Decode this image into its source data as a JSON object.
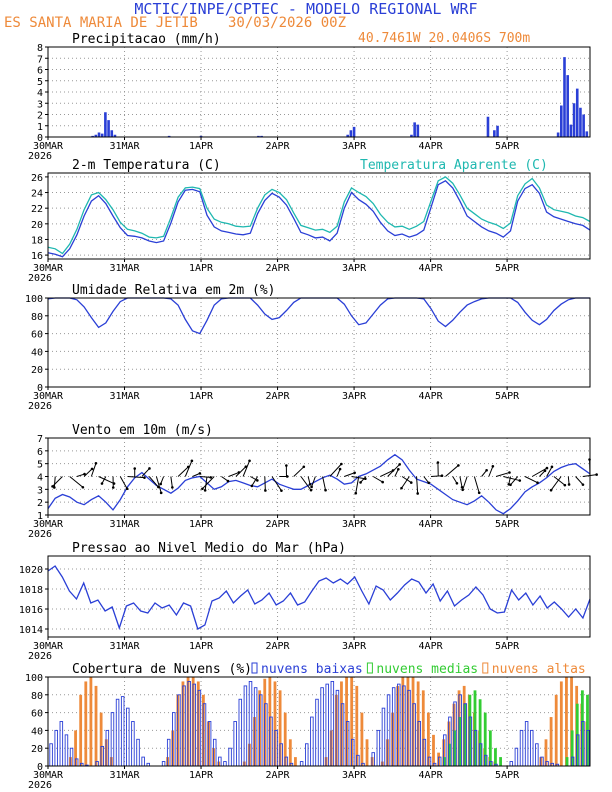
{
  "header": {
    "title": "MCTIC/INPE/CPTEC - MODELO REGIONAL WRF",
    "location": "ES SANTA MARIA DE JETIB",
    "run": "30/03/2026 00Z",
    "coords": "40.7461W 20.0406S 700m"
  },
  "colors": {
    "blue": "#2a3fd6",
    "orange": "#ee8a3a",
    "cyan": "#1fb8b0",
    "green": "#33cc33",
    "black": "#000000"
  },
  "x_axis": {
    "hours": 144,
    "ticks": [
      {
        "h": 0,
        "label": "30MAR",
        "year": "2026"
      },
      {
        "h": 24,
        "label": "31MAR"
      },
      {
        "h": 48,
        "label": "1APR"
      },
      {
        "h": 72,
        "label": "2APR"
      },
      {
        "h": 96,
        "label": "3APR"
      },
      {
        "h": 120,
        "label": "4APR"
      },
      {
        "h": 144,
        "label": "5APR"
      }
    ]
  },
  "chart_data": [
    {
      "type": "bar",
      "title": "Precipitacao (mm/h)",
      "ylim": [
        0,
        8
      ],
      "yticks": [
        0,
        1,
        2,
        3,
        4,
        5,
        6,
        7,
        8
      ],
      "series": [
        {
          "name": "precipitacao",
          "color": "#2a3fd6",
          "points": [
            [
              14,
              0.1
            ],
            [
              15,
              0.2
            ],
            [
              16,
              0.4
            ],
            [
              17,
              0.3
            ],
            [
              18,
              2.2
            ],
            [
              19,
              1.5
            ],
            [
              20,
              0.6
            ],
            [
              21,
              0.2
            ],
            [
              38,
              0.1
            ],
            [
              48,
              0.1
            ],
            [
              66,
              0.1
            ],
            [
              67,
              0.1
            ],
            [
              94,
              0.2
            ],
            [
              95,
              0.6
            ],
            [
              96,
              0.9
            ],
            [
              114,
              0.2
            ],
            [
              115,
              1.3
            ],
            [
              116,
              1.1
            ],
            [
              138,
              1.8
            ],
            [
              140,
              0.6
            ],
            [
              141,
              1.0
            ],
            [
              160,
              0.4
            ],
            [
              161,
              2.8
            ],
            [
              162,
              7.1
            ],
            [
              163,
              5.5
            ],
            [
              164,
              1.1
            ],
            [
              165,
              3.0
            ],
            [
              166,
              4.3
            ],
            [
              167,
              2.6
            ],
            [
              168,
              2.0
            ],
            [
              169,
              0.5
            ]
          ]
        }
      ]
    },
    {
      "type": "line",
      "title": "2-m Temperatura (C)",
      "legend": "Temperatura Aparente (C)",
      "ylim": [
        15.5,
        26.5
      ],
      "yticks": [
        16,
        18,
        20,
        22,
        24,
        26
      ],
      "series": [
        {
          "name": "temperatura",
          "color": "#2a3fd6",
          "values": [
            16.3,
            16.1,
            15.8,
            16.8,
            18.6,
            21.0,
            22.9,
            23.6,
            22.6,
            21.0,
            19.5,
            18.5,
            18.4,
            18.2,
            17.8,
            17.6,
            17.8,
            20.1,
            22.8,
            24.3,
            24.4,
            24.1,
            21.1,
            19.6,
            19.1,
            18.9,
            18.7,
            18.6,
            18.8,
            21.3,
            23.0,
            23.9,
            23.4,
            22.4,
            20.7,
            18.9,
            18.6,
            18.2,
            18.3,
            17.8,
            18.8,
            22.0,
            24.0,
            23.1,
            22.5,
            21.6,
            20.2,
            19.1,
            18.5,
            18.7,
            18.3,
            18.6,
            19.2,
            22.1,
            25.0,
            25.5,
            24.6,
            22.9,
            21.0,
            20.3,
            19.6,
            19.1,
            18.8,
            18.3,
            19.1,
            22.9,
            24.5,
            25.0,
            23.9,
            21.5,
            20.9,
            20.6,
            20.3,
            20.0,
            19.8,
            19.2
          ]
        },
        {
          "name": "temperatura aparente",
          "color": "#1fb8b0",
          "values": [
            17.0,
            16.8,
            16.2,
            17.4,
            19.3,
            21.8,
            23.7,
            24.0,
            23.1,
            21.8,
            20.2,
            19.3,
            19.1,
            18.8,
            18.3,
            18.2,
            18.4,
            20.8,
            23.4,
            24.6,
            24.7,
            24.5,
            22.0,
            20.6,
            20.2,
            20.0,
            19.7,
            19.6,
            19.7,
            22.0,
            23.7,
            24.4,
            24.0,
            23.1,
            21.4,
            19.8,
            19.5,
            19.2,
            19.3,
            18.9,
            19.7,
            22.8,
            24.6,
            24.0,
            23.5,
            22.6,
            21.2,
            20.2,
            19.6,
            19.7,
            19.3,
            19.7,
            20.3,
            22.9,
            25.5,
            26.0,
            25.2,
            23.7,
            22.0,
            21.3,
            20.6,
            20.2,
            19.9,
            19.4,
            20.1,
            23.6,
            25.1,
            25.8,
            24.6,
            22.4,
            21.8,
            21.6,
            21.4,
            21.0,
            20.8,
            20.3
          ]
        }
      ]
    },
    {
      "type": "line",
      "title": "Umidade Relativa em 2m (%)",
      "ylim": [
        0,
        100
      ],
      "yticks": [
        0,
        20,
        40,
        60,
        80,
        100
      ],
      "series": [
        {
          "name": "umidade",
          "color": "#2a3fd6",
          "values": [
            99,
            100,
            100,
            100,
            98,
            90,
            78,
            67,
            72,
            85,
            96,
            100,
            100,
            100,
            100,
            100,
            100,
            99,
            92,
            76,
            63,
            60,
            75,
            92,
            99,
            100,
            100,
            100,
            100,
            92,
            82,
            76,
            78,
            86,
            95,
            100,
            100,
            100,
            100,
            100,
            100,
            93,
            80,
            70,
            72,
            82,
            92,
            99,
            100,
            100,
            100,
            100,
            99,
            88,
            74,
            68,
            75,
            84,
            92,
            96,
            99,
            100,
            100,
            100,
            100,
            95,
            84,
            75,
            70,
            76,
            86,
            93,
            98,
            100,
            100,
            100
          ]
        }
      ]
    },
    {
      "type": "line",
      "title": "Vento em 10m (m/s)",
      "ylim": [
        1,
        7
      ],
      "yticks": [
        1,
        2,
        3,
        4,
        5,
        6,
        7
      ],
      "series": [
        {
          "name": "velocidade do vento",
          "color": "#2a3fd6",
          "values": [
            1.5,
            2.3,
            2.6,
            2.4,
            2.0,
            1.8,
            2.2,
            2.5,
            2.0,
            1.4,
            2.2,
            3.2,
            3.9,
            4.3,
            3.8,
            3.3,
            3.0,
            2.7,
            3.1,
            3.7,
            3.9,
            4.0,
            3.5,
            3.0,
            3.2,
            3.6,
            3.7,
            3.5,
            3.3,
            3.2,
            3.5,
            3.8,
            3.4,
            3.2,
            3.0,
            3.0,
            3.3,
            3.6,
            3.9,
            4.1,
            3.8,
            3.4,
            3.5,
            4.0,
            4.2,
            4.5,
            4.8,
            5.3,
            5.7,
            5.3,
            4.5,
            3.8,
            3.6,
            3.4,
            3.0,
            2.6,
            2.2,
            2.0,
            1.8,
            2.1,
            2.5,
            2.0,
            1.4,
            1.1,
            1.5,
            2.1,
            2.8,
            3.2,
            3.5,
            3.9,
            4.4,
            4.7,
            4.9,
            5.0,
            4.6,
            4.2
          ]
        }
      ],
      "vectors_note": "setas de direcao do vento"
    },
    {
      "type": "line",
      "title": "Pressao ao Nivel Medio do Mar (hPa)",
      "ylim": [
        1013.2,
        1021.3
      ],
      "yticks": [
        1014,
        1016,
        1018,
        1020
      ],
      "series": [
        {
          "name": "pressao",
          "color": "#2a3fd6",
          "values": [
            1019.8,
            1020.3,
            1019.2,
            1017.8,
            1017.0,
            1018.6,
            1016.6,
            1016.9,
            1015.8,
            1016.2,
            1014.1,
            1016.3,
            1016.6,
            1015.8,
            1015.6,
            1016.6,
            1016.1,
            1016.4,
            1015.4,
            1016.6,
            1016.3,
            1014.0,
            1014.4,
            1016.8,
            1017.1,
            1017.8,
            1016.6,
            1017.3,
            1017.9,
            1016.5,
            1016.9,
            1017.6,
            1016.4,
            1016.8,
            1017.6,
            1016.4,
            1016.7,
            1017.8,
            1018.8,
            1019.1,
            1018.6,
            1019.0,
            1018.5,
            1019.2,
            1017.8,
            1016.5,
            1018.3,
            1017.9,
            1016.9,
            1017.6,
            1018.4,
            1019.0,
            1018.7,
            1017.6,
            1018.5,
            1016.8,
            1017.8,
            1016.3,
            1016.9,
            1017.4,
            1018.2,
            1017.4,
            1016.0,
            1015.6,
            1015.7,
            1017.9,
            1016.9,
            1017.6,
            1016.4,
            1017.3,
            1016.1,
            1016.7,
            1016.0,
            1015.2,
            1016.0,
            1015.1,
            1017.0
          ]
        }
      ]
    },
    {
      "type": "bar",
      "title": "Cobertura de Nuvens (%)",
      "ylim": [
        0,
        100
      ],
      "yticks": [
        0,
        20,
        40,
        60,
        80,
        100
      ],
      "legend": [
        "nuvens baixas",
        "nuvens medias",
        "nuvens altas"
      ],
      "series": [
        {
          "name": "nuvens baixas",
          "color": "#2a3fd6",
          "values": [
            25,
            40,
            50,
            35,
            20,
            8,
            3,
            1,
            0,
            5,
            22,
            40,
            60,
            75,
            78,
            65,
            50,
            30,
            10,
            3,
            0,
            0,
            5,
            30,
            60,
            80,
            90,
            95,
            92,
            85,
            70,
            50,
            30,
            10,
            5,
            20,
            50,
            75,
            90,
            95,
            88,
            80,
            70,
            55,
            40,
            25,
            10,
            3,
            0,
            5,
            25,
            55,
            75,
            88,
            92,
            95,
            85,
            70,
            50,
            30,
            12,
            3,
            0,
            15,
            40,
            65,
            80,
            88,
            92,
            90,
            85,
            70,
            50,
            30,
            10,
            3,
            10,
            35,
            55,
            72,
            80,
            70,
            55,
            40,
            25,
            12,
            5,
            2,
            0,
            0,
            5,
            20,
            40,
            50,
            40,
            25,
            10,
            5,
            3,
            2,
            0,
            0,
            10,
            35,
            50,
            40
          ]
        },
        {
          "name": "nuvens medias",
          "color": "#33cc33",
          "values": [
            0,
            0,
            0,
            0,
            0,
            0,
            0,
            0,
            0,
            0,
            0,
            0,
            0,
            0,
            0,
            0,
            0,
            0,
            0,
            0,
            0,
            0,
            0,
            0,
            0,
            0,
            0,
            0,
            0,
            0,
            0,
            0,
            0,
            0,
            0,
            0,
            0,
            0,
            0,
            0,
            0,
            0,
            0,
            0,
            0,
            0,
            0,
            0,
            0,
            0,
            0,
            0,
            0,
            0,
            0,
            0,
            0,
            0,
            0,
            0,
            0,
            0,
            0,
            0,
            0,
            0,
            0,
            0,
            0,
            0,
            0,
            0,
            0,
            0,
            0,
            0,
            0,
            10,
            25,
            40,
            55,
            70,
            80,
            85,
            75,
            60,
            40,
            20,
            10,
            0,
            0,
            0,
            0,
            0,
            0,
            0,
            0,
            0,
            0,
            0,
            0,
            10,
            40,
            70,
            85,
            80
          ]
        },
        {
          "name": "nuvens altas",
          "color": "#ee8a3a",
          "values": [
            0,
            0,
            0,
            0,
            10,
            40,
            80,
            95,
            100,
            90,
            60,
            30,
            10,
            0,
            0,
            0,
            0,
            0,
            0,
            0,
            0,
            0,
            0,
            10,
            40,
            80,
            95,
            100,
            100,
            95,
            80,
            50,
            20,
            5,
            0,
            0,
            0,
            0,
            5,
            25,
            55,
            85,
            98,
            100,
            95,
            85,
            60,
            30,
            10,
            0,
            0,
            0,
            0,
            0,
            10,
            40,
            80,
            95,
            100,
            100,
            90,
            60,
            30,
            10,
            0,
            5,
            30,
            60,
            90,
            100,
            100,
            100,
            95,
            85,
            60,
            35,
            15,
            30,
            50,
            70,
            85,
            90,
            80,
            60,
            40,
            20,
            10,
            5,
            0,
            0,
            0,
            0,
            0,
            0,
            0,
            0,
            10,
            30,
            55,
            80,
            95,
            100,
            100,
            90,
            70,
            50
          ]
        }
      ]
    }
  ]
}
